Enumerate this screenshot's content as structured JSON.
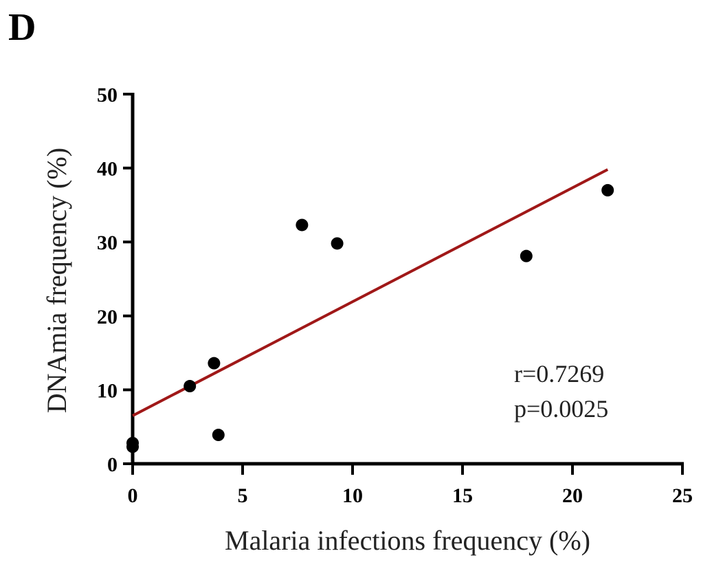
{
  "panel_label": "D",
  "annotations": [
    "r=0.7269",
    "p=0.0025"
  ],
  "colors": {
    "points": "#000000",
    "fit_line": "#a01818",
    "axes": "#000000"
  },
  "chart_data": {
    "type": "scatter",
    "title": "",
    "xlabel": "Malaria infections frequency (%)",
    "ylabel": "DNAmia frequency (%)",
    "xlim": [
      0,
      25
    ],
    "ylim": [
      0,
      50
    ],
    "xticks": [
      0,
      5,
      10,
      15,
      20,
      25
    ],
    "yticks": [
      0,
      10,
      20,
      30,
      40,
      50
    ],
    "grid": false,
    "series": [
      {
        "points": [
          {
            "x": 0,
            "y": 2.3
          },
          {
            "x": 0,
            "y": 2.8
          },
          {
            "x": 2.6,
            "y": 10.5
          },
          {
            "x": 3.7,
            "y": 13.6
          },
          {
            "x": 3.9,
            "y": 3.9
          },
          {
            "x": 7.7,
            "y": 32.3
          },
          {
            "x": 9.3,
            "y": 29.8
          },
          {
            "x": 17.9,
            "y": 28.1
          },
          {
            "x": 21.6,
            "y": 37.0
          }
        ]
      }
    ],
    "fit_line": {
      "x": [
        0,
        21.6
      ],
      "y": [
        6.5,
        39.8
      ]
    }
  }
}
